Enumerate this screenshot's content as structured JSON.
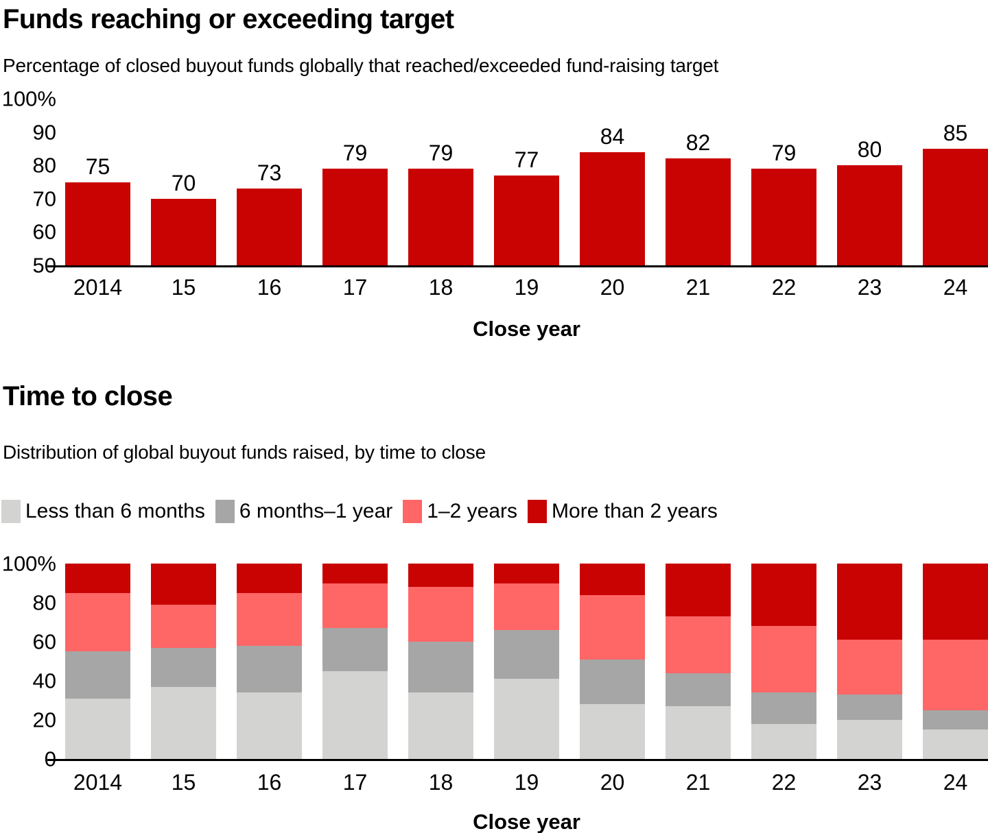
{
  "page": {
    "background": "#ffffff",
    "text_color": "#000000",
    "axis_color": "#000000"
  },
  "chart_data": [
    {
      "type": "bar",
      "title": "Funds reaching or exceeding target",
      "subtitle": "Percentage of closed buyout funds globally that reached/exceeded fund-raising target",
      "xlabel": "Close year",
      "categories": [
        "2014",
        "15",
        "16",
        "17",
        "18",
        "19",
        "20",
        "21",
        "22",
        "23",
        "24"
      ],
      "values": [
        75,
        70,
        73,
        79,
        79,
        77,
        84,
        82,
        79,
        80,
        85
      ],
      "ylim": [
        50,
        100
      ],
      "yticks": [
        "100%",
        "90",
        "80",
        "70",
        "60",
        "50"
      ],
      "bar_color": "#c90202",
      "grid": false,
      "legend": "none",
      "bar_value_labels": true
    },
    {
      "type": "bar",
      "stacked": "100%",
      "title": "Time to close",
      "subtitle": "Distribution of global buyout funds raised, by time to close",
      "xlabel": "Close year",
      "categories": [
        "2014",
        "15",
        "16",
        "17",
        "18",
        "19",
        "20",
        "21",
        "22",
        "23",
        "24"
      ],
      "series": [
        {
          "name": "Less than 6 months",
          "color": "#d3d3d1",
          "values": [
            31,
            37,
            34,
            45,
            34,
            41,
            28,
            27,
            18,
            20,
            15
          ]
        },
        {
          "name": "6 months–1 year",
          "color": "#a6a6a6",
          "values": [
            24,
            20,
            24,
            22,
            26,
            25,
            23,
            17,
            16,
            13,
            10
          ]
        },
        {
          "name": "1–2 years",
          "color": "#ff6666",
          "values": [
            30,
            22,
            27,
            23,
            28,
            24,
            33,
            29,
            34,
            28,
            36
          ]
        },
        {
          "name": "More than 2 years",
          "color": "#c90202",
          "values": [
            15,
            21,
            15,
            10,
            12,
            10,
            16,
            27,
            32,
            39,
            39
          ]
        }
      ],
      "ylim": [
        0,
        100
      ],
      "yticks": [
        "100%",
        "80",
        "60",
        "40",
        "20",
        "0"
      ],
      "grid": false,
      "legend": "top-left",
      "bar_value_labels": false
    }
  ]
}
